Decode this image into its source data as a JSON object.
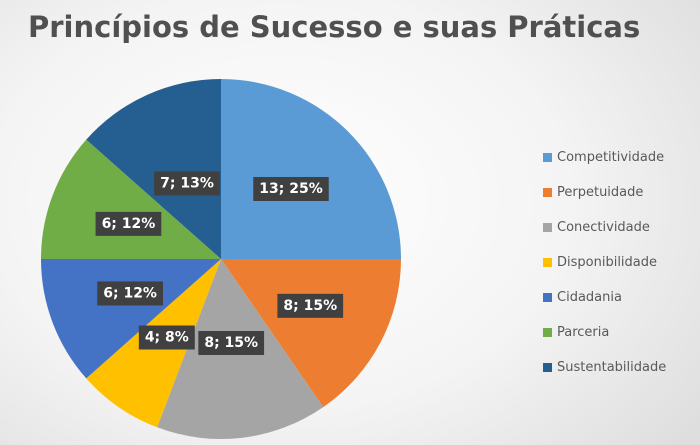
{
  "chart_data": {
    "type": "pie",
    "title": "Princípios de Sucesso e suas Práticas",
    "categories": [
      "Competitividade",
      "Perpetuidade",
      "Conectividade",
      "Disponibilidade",
      "Cidadania",
      "Parceria",
      "Sustentabilidade"
    ],
    "values": [
      13,
      8,
      8,
      4,
      6,
      6,
      7
    ],
    "data_labels": [
      "13; 25%",
      "8; 15%",
      "8; 15%",
      "4; 8%",
      "6; 12%",
      "6; 12%",
      "7; 13%"
    ],
    "colors": [
      "#5b9bd5",
      "#ed7d31",
      "#a5a5a5",
      "#ffc000",
      "#4472c4",
      "#70ad47",
      "#255e91"
    ],
    "legend_position": "right",
    "start_angle": "top, clockwise"
  }
}
